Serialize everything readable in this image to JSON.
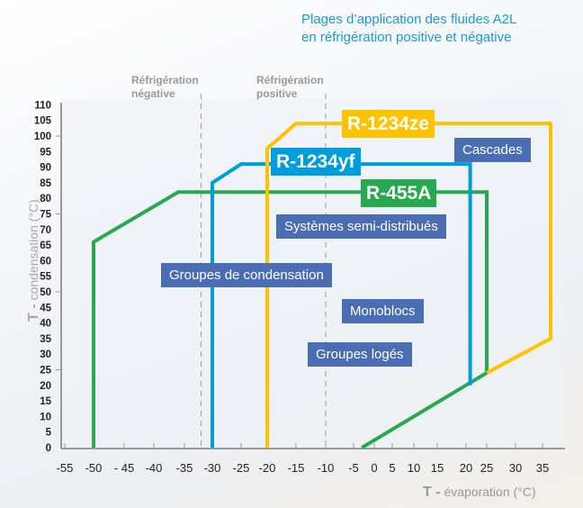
{
  "title_line1": "Plages d’application des fluides A2L",
  "title_line2": "en réfrigération positive et négative",
  "zones": [
    {
      "line1": "Réfrigération",
      "line2": "négative"
    },
    {
      "line1": "Réfrigération",
      "line2": "positive"
    }
  ],
  "colors": {
    "yellow": "#fdc300",
    "blue": "#009ddd",
    "green": "#27a94f",
    "box": "#4a6db4"
  },
  "applications": [
    "Cascades",
    "Systèmes semi-distribués",
    "Groupes de condensation",
    "Monoblocs",
    "Groupes logés"
  ],
  "chart_data": {
    "type": "line",
    "title": "Plages d’application des fluides A2L en réfrigération positive et négative",
    "xlabel_prefix": "T -",
    "xlabel": "évaporation (°C)",
    "ylabel_prefix": "T -",
    "ylabel": "condensation (°C)",
    "xlim": [
      -57,
      40
    ],
    "ylim": [
      0,
      110
    ],
    "x_ticks": [
      "-55",
      "-50",
      "- 45",
      "-40",
      "-35",
      "-30",
      "-25",
      "-20",
      "-15",
      "-10",
      "-5",
      "0",
      "5",
      "10",
      "15",
      "20",
      "25",
      "30",
      "35"
    ],
    "x_tick_values": [
      -55,
      -50,
      -45,
      -40,
      -35,
      -30,
      -25,
      -20,
      -15,
      -10,
      -5,
      0,
      5,
      10,
      15,
      20,
      25,
      30,
      35
    ],
    "y_ticks": [
      0,
      5,
      10,
      15,
      20,
      25,
      30,
      35,
      40,
      45,
      50,
      55,
      60,
      65,
      70,
      75,
      80,
      85,
      90,
      95,
      100,
      105,
      110
    ],
    "dividers": [
      -32,
      -10
    ],
    "series": [
      {
        "name": "R-455A",
        "color": "#27a94f",
        "points": [
          [
            -50,
            0
          ],
          [
            -50,
            66
          ],
          [
            -36,
            82
          ],
          [
            25,
            82
          ],
          [
            25,
            24
          ],
          [
            -3,
            0
          ]
        ]
      },
      {
        "name": "R-1234yf",
        "color": "#009ddd",
        "points": [
          [
            -30,
            0
          ],
          [
            -30,
            85
          ],
          [
            -25,
            91
          ],
          [
            21,
            91
          ],
          [
            21,
            20
          ]
        ]
      },
      {
        "name": "R-1234ze",
        "color": "#fdc300",
        "points": [
          [
            -20,
            0
          ],
          [
            -20,
            96
          ],
          [
            -15,
            104
          ],
          [
            38,
            104
          ],
          [
            38,
            35
          ],
          [
            25,
            24
          ]
        ]
      }
    ]
  }
}
